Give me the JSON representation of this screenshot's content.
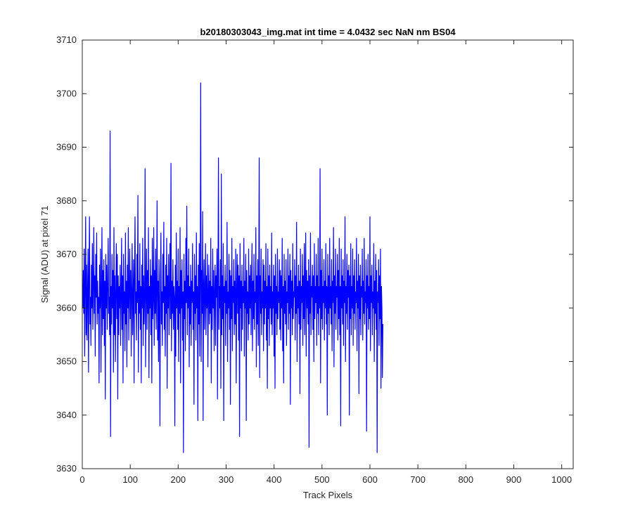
{
  "chart_data": {
    "type": "line",
    "title": "b20180303043_img.mat int time = 4.0432 sec  NaN nm BS04",
    "xlabel": "Track Pixels",
    "ylabel": "Signal (ADU) at pixel 71",
    "xlim": [
      0,
      1024
    ],
    "ylim": [
      3630,
      3710
    ],
    "xticks": [
      0,
      100,
      200,
      300,
      400,
      500,
      600,
      700,
      800,
      900,
      1000
    ],
    "yticks": [
      3630,
      3640,
      3650,
      3660,
      3670,
      3680,
      3690,
      3700,
      3710
    ],
    "grid": false,
    "line_color": "#0000ff",
    "series": [
      {
        "x_start": 1,
        "x_step": 1,
        "values": [
          3660,
          3667,
          3659,
          3671,
          3651,
          3664,
          3677,
          3655,
          3668,
          3654,
          3663,
          3671,
          3648,
          3666,
          3677,
          3657,
          3662,
          3653,
          3668,
          3660,
          3672,
          3656,
          3664,
          3675,
          3659,
          3666,
          3651,
          3670,
          3662,
          3674,
          3657,
          3665,
          3659,
          3662,
          3646,
          3668,
          3660,
          3671,
          3648,
          3663,
          3675,
          3655,
          3667,
          3658,
          3669,
          3653,
          3665,
          3643,
          3670,
          3660,
          3668,
          3656,
          3664,
          3673,
          3659,
          3662,
          3655,
          3693,
          3636,
          3664,
          3657,
          3670,
          3660,
          3667,
          3648,
          3675,
          3655,
          3666,
          3650,
          3663,
          3672,
          3658,
          3670,
          3643,
          3666,
          3655,
          3664,
          3660,
          3668,
          3653,
          3662,
          3673,
          3656,
          3666,
          3646,
          3670,
          3659,
          3663,
          3652,
          3674,
          3657,
          3665,
          3649,
          3668,
          3660,
          3675,
          3654,
          3663,
          3671,
          3658,
          3667,
          3651,
          3664,
          3672,
          3655,
          3661,
          3669,
          3646,
          3666,
          3677,
          3659,
          3663,
          3654,
          3670,
          3661,
          3681,
          3648,
          3665,
          3659,
          3672,
          3656,
          3664,
          3646,
          3668,
          3660,
          3673,
          3653,
          3666,
          3657,
          3662,
          3686,
          3649,
          3663,
          3671,
          3656,
          3667,
          3659,
          3675,
          3647,
          3664,
          3660,
          3669,
          3655,
          3666,
          3646,
          3673,
          3658,
          3662,
          3675,
          3653,
          3667,
          3659,
          3671,
          3656,
          3663,
          3680,
          3654,
          3665,
          3650,
          3669,
          3660,
          3638,
          3666,
          3674,
          3657,
          3663,
          3653,
          3670,
          3661,
          3676,
          3656,
          3664,
          3651,
          3668,
          3659,
          3673,
          3645,
          3666,
          3660,
          3670,
          3655,
          3663,
          3672,
          3658,
          3687,
          3652,
          3665,
          3659,
          3669,
          3656,
          3664,
          3662,
          3638,
          3668,
          3651,
          3674,
          3660,
          3665,
          3656,
          3671,
          3650,
          3664,
          3659,
          3675,
          3646,
          3667,
          3660,
          3669,
          3654,
          3663,
          3633,
          3670,
          3658,
          3665,
          3652,
          3673,
          3661,
          3679,
          3655,
          3666,
          3660,
          3671,
          3649,
          3664,
          3657,
          3668,
          3653,
          3665,
          3661,
          3672,
          3656,
          3663,
          3642,
          3670,
          3659,
          3666,
          3654,
          3674,
          3660,
          3664,
          3639,
          3668,
          3657,
          3672,
          3651,
          3665,
          3702,
          3650,
          3667,
          3659,
          3678,
          3639,
          3664,
          3669,
          3656,
          3662,
          3672,
          3655,
          3666,
          3660,
          3670,
          3649,
          3663,
          3668,
          3657,
          3665,
          3659,
          3673,
          3646,
          3664,
          3656,
          3671,
          3660,
          3667,
          3652,
          3663,
          3668,
          3653,
          3666,
          3662,
          3671,
          3643,
          3665,
          3688,
          3656,
          3664,
          3660,
          3669,
          3645,
          3685,
          3655,
          3666,
          3658,
          3672,
          3639,
          3664,
          3661,
          3668,
          3653,
          3665,
          3659,
          3676,
          3650,
          3663,
          3660,
          3670,
          3656,
          3667,
          3642,
          3666,
          3658,
          3673,
          3652,
          3664,
          3661,
          3669,
          3655,
          3665,
          3657,
          3671,
          3646,
          3663,
          3670,
          3659,
          3668,
          3654,
          3666,
          3636,
          3672,
          3660,
          3665,
          3652,
          3668,
          3656,
          3664,
          3661,
          3673,
          3651,
          3665,
          3660,
          3670,
          3639,
          3667,
          3659,
          3663,
          3654,
          3671,
          3657,
          3666,
          3660,
          3668,
          3655,
          3664,
          3672,
          3652,
          3665,
          3658,
          3670,
          3656,
          3663,
          3661,
          3675,
          3649,
          3666,
          3657,
          3669,
          3653,
          3664,
          3688,
          3647,
          3666,
          3659,
          3671,
          3655,
          3663,
          3660,
          3669,
          3652,
          3668,
          3657,
          3665,
          3660,
          3672,
          3654,
          3664,
          3645,
          3671,
          3658,
          3666,
          3653,
          3668,
          3660,
          3664,
          3657,
          3674,
          3655,
          3663,
          3660,
          3668,
          3651,
          3666,
          3645,
          3670,
          3659,
          3664,
          3655,
          3671,
          3658,
          3663,
          3661,
          3669,
          3656,
          3667,
          3654,
          3666,
          3660,
          3673,
          3652,
          3664,
          3646,
          3670,
          3659,
          3665,
          3657,
          3669,
          3653,
          3663,
          3661,
          3671,
          3656,
          3666,
          3659,
          3670,
          3642,
          3667,
          3660,
          3665,
          3655,
          3672,
          3658,
          3663,
          3662,
          3669,
          3654,
          3666,
          3659,
          3676,
          3650,
          3664,
          3660,
          3668,
          3657,
          3665,
          3644,
          3671,
          3656,
          3664,
          3661,
          3670,
          3653,
          3666,
          3658,
          3672,
          3655,
          3664,
          3674,
          3651,
          3667,
          3660,
          3665,
          3657,
          3669,
          3634,
          3666,
          3659,
          3674,
          3655,
          3664,
          3662,
          3668,
          3656,
          3666,
          3650,
          3672,
          3658,
          3664,
          3661,
          3670,
          3653,
          3666,
          3659,
          3673,
          3655,
          3664,
          3660,
          3686,
          3646,
          3667,
          3658,
          3671,
          3656,
          3664,
          3661,
          3669,
          3654,
          3665,
          3660,
          3672,
          3657,
          3664,
          3640,
          3670,
          3659,
          3666,
          3655,
          3673,
          3660,
          3664,
          3657,
          3669,
          3652,
          3665,
          3661,
          3675,
          3649,
          3666,
          3659,
          3671,
          3656,
          3664,
          3662,
          3670,
          3654,
          3667,
          3658,
          3673,
          3655,
          3664,
          3638,
          3671,
          3660,
          3666,
          3657,
          3669,
          3653,
          3665,
          3661,
          3677,
          3650,
          3664,
          3659,
          3670,
          3656,
          3667,
          3662,
          3668,
          3640,
          3666,
          3658,
          3672,
          3655,
          3664,
          3660,
          3671,
          3653,
          3666,
          3659,
          3669,
          3656,
          3663,
          3661,
          3673,
          3652,
          3665,
          3660,
          3670,
          3644,
          3666,
          3658,
          3668,
          3655,
          3664,
          3662,
          3671,
          3654,
          3665,
          3659,
          3673,
          3657,
          3663,
          3661,
          3669,
          3637,
          3666,
          3660,
          3670,
          3656,
          3664,
          3658,
          3677,
          3652,
          3666,
          3661,
          3668,
          3655,
          3663,
          3660,
          3672,
          3650,
          3665,
          3659,
          3670,
          3656,
          3667,
          3633,
          3663,
          3661,
          3669,
          3653,
          3666,
          3658,
          3671,
          3645,
          3664,
          3660,
          3647,
          3657
        ]
      }
    ]
  }
}
